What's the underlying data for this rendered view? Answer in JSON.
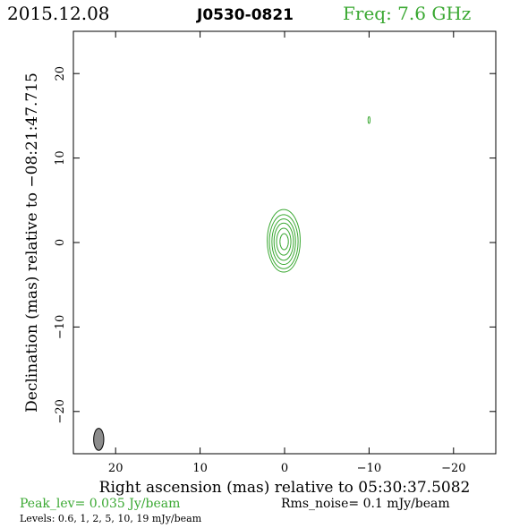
{
  "header": {
    "date": "2015.12.08",
    "source": "J0530-0821",
    "freq": "Freq: 7.6 GHz"
  },
  "footer": {
    "peak": "Peak_lev=  0.035 Jy/beam",
    "rms": "Rms_noise=   0.1 mJy/beam",
    "levels": "Levels: 0.6,    1,    2,    5,   10,   19 mJy/beam"
  },
  "colors": {
    "contour": "#3aa832",
    "frame": "#000000",
    "beam_fill": "#8c8c8c"
  },
  "chart_data": {
    "type": "contour",
    "xlabel": "Right ascension (mas) relative to 05:30:37.5082",
    "ylabel": "Declination (mas) relative to −08:21:47.715",
    "xlim": [
      25,
      -25
    ],
    "ylim": [
      -25,
      25
    ],
    "x_reversed": true,
    "xticks": [
      {
        "v": 20,
        "label": "20"
      },
      {
        "v": 10,
        "label": "10"
      },
      {
        "v": 0,
        "label": "0"
      },
      {
        "v": -10,
        "label": "−10"
      },
      {
        "v": -20,
        "label": "−20"
      }
    ],
    "yticks": [
      {
        "v": 20,
        "label": "20"
      },
      {
        "v": 10,
        "label": "10"
      },
      {
        "v": 0,
        "label": "0"
      },
      {
        "v": -10,
        "label": "−10"
      },
      {
        "v": -20,
        "label": "−20"
      }
    ],
    "levels_mJy": [
      0.6,
      1,
      2,
      5,
      10,
      19
    ],
    "contours": [
      {
        "cx": 0.1,
        "cy": 0.2,
        "rx": 1.95,
        "ry": 3.7
      },
      {
        "cx": 0.1,
        "cy": 0.1,
        "rx": 1.7,
        "ry": 3.2
      },
      {
        "cx": 0.1,
        "cy": 0.1,
        "rx": 1.4,
        "ry": 2.7
      },
      {
        "cx": 0.1,
        "cy": 0.1,
        "rx": 1.15,
        "ry": 2.2
      },
      {
        "cx": 0.1,
        "cy": 0.1,
        "rx": 0.85,
        "ry": 1.6
      },
      {
        "cx": 0.05,
        "cy": 0.1,
        "rx": 0.5,
        "ry": 0.95
      }
    ],
    "extra_components": [
      {
        "cx": -10.0,
        "cy": 14.5,
        "rx": 0.12,
        "ry": 0.4
      }
    ],
    "beam": {
      "cx": 22.0,
      "cy": -23.3,
      "major": 2.6,
      "minor": 1.2
    }
  }
}
